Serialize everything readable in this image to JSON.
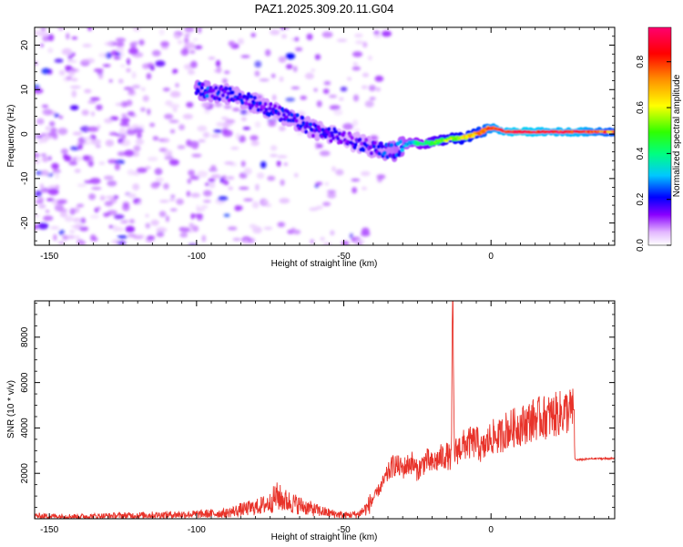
{
  "title": "PAZ1.2025.309.20.11.G04",
  "chart_data": [
    {
      "type": "heatmap",
      "name": "spectrogram",
      "xlabel": "Height of straight line (km)",
      "ylabel": "Frequency (Hz)",
      "xlim": [
        -155,
        42
      ],
      "ylim": [
        -25,
        24
      ],
      "xticks": [
        -150,
        -100,
        -50,
        0
      ],
      "yticks": [
        -20,
        -10,
        0,
        10,
        20
      ],
      "colorbar": {
        "label": "Normalized spectral amplitude",
        "range": [
          0,
          0.95
        ],
        "ticks": [
          0.0,
          0.2,
          0.4,
          0.6,
          0.8
        ],
        "colormap": "hsv"
      },
      "signal_track": {
        "x": [
          -100,
          -90,
          -80,
          -70,
          -60,
          -50,
          -40,
          -33,
          -28,
          -20,
          -14,
          -10,
          -5,
          0,
          5,
          10,
          20,
          30,
          42
        ],
        "freq": [
          10,
          9,
          7,
          4,
          1,
          -1,
          -3,
          -4,
          -2,
          -2,
          -1,
          -1,
          0,
          1.5,
          0.5,
          0.5,
          0.5,
          0.5,
          0.5
        ],
        "amplitude": [
          0.25,
          0.2,
          0.2,
          0.2,
          0.2,
          0.15,
          0.2,
          0.25,
          0.3,
          0.45,
          0.55,
          0.6,
          0.65,
          0.8,
          0.85,
          0.9,
          0.85,
          0.85,
          0.7
        ]
      },
      "noise_region": {
        "x_range": [
          -155,
          -35
        ],
        "freq_range": [
          -25,
          24
        ],
        "amplitude": 0.1
      }
    },
    {
      "type": "line",
      "name": "snr",
      "xlabel": "Height of straight line (km)",
      "ylabel": "SNR (10 * v/v)",
      "xlim": [
        -155,
        42
      ],
      "ylim": [
        0,
        9600
      ],
      "xticks": [
        -150,
        -100,
        -50,
        0
      ],
      "yticks": [
        2000,
        4000,
        6000,
        8000
      ],
      "color": "#e8332a",
      "series": [
        {
          "name": "SNR",
          "x": [
            -155,
            -140,
            -120,
            -100,
            -90,
            -85,
            -80,
            -75,
            -73,
            -70,
            -65,
            -60,
            -55,
            -50,
            -45,
            -42,
            -40,
            -37,
            -35,
            -33,
            -30,
            -27,
            -25,
            -22,
            -20,
            -17,
            -15,
            -13.5,
            -13,
            -12.5,
            -10,
            -8,
            -5,
            -3,
            0,
            3,
            5,
            10,
            15,
            20,
            25,
            28,
            28.5,
            30,
            35,
            42
          ],
          "y": [
            120,
            100,
            150,
            200,
            250,
            400,
            500,
            700,
            1000,
            800,
            600,
            400,
            250,
            150,
            200,
            500,
            900,
            1500,
            2000,
            2400,
            2200,
            2500,
            2100,
            2600,
            2400,
            2700,
            2800,
            2600,
            9600,
            2900,
            3200,
            3300,
            3400,
            3000,
            3600,
            3600,
            3900,
            4100,
            4400,
            4500,
            4700,
            4800,
            2600,
            2600,
            2650,
            2650
          ]
        }
      ]
    }
  ]
}
